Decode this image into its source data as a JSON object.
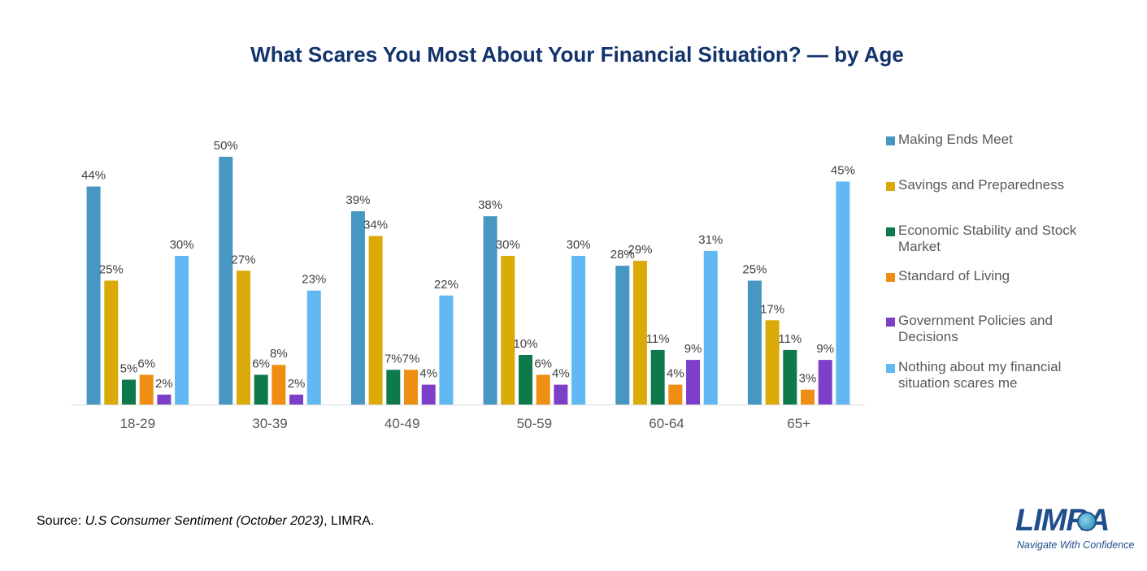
{
  "chart_data": {
    "type": "bar",
    "title": "What Scares You Most About Your Financial Situation? — by Age",
    "categories": [
      "18-29",
      "30-39",
      "40-49",
      "50-59",
      "60-64",
      "65+"
    ],
    "series": [
      {
        "name": "Making Ends Meet",
        "color": "#4797c2",
        "values": [
          44,
          50,
          39,
          38,
          28,
          25
        ],
        "labels": [
          "44%",
          "50%",
          "39%",
          "38%",
          "28%",
          "25%"
        ]
      },
      {
        "name": "Savings and Preparedness",
        "color": "#d9aa08",
        "values": [
          25,
          27,
          34,
          30,
          29,
          17
        ],
        "labels": [
          "25%",
          "27%",
          "34%",
          "30%",
          "29%",
          "17%"
        ]
      },
      {
        "name": "Economic Stability and Stock Market",
        "color": "#0e7a4c",
        "values": [
          5,
          6,
          7,
          10,
          11,
          11
        ],
        "labels": [
          "5%",
          "6%",
          "7%",
          "10%",
          "11%",
          "11%"
        ]
      },
      {
        "name": "Standard of Living",
        "color": "#ee8f13",
        "values": [
          6,
          8,
          7,
          6,
          4,
          3
        ],
        "labels": [
          "6%",
          "8%",
          "7%",
          "6%",
          "4%",
          "3%"
        ]
      },
      {
        "name": "Government Policies and Decisions",
        "color": "#7b3fc8",
        "values": [
          2,
          2,
          4,
          4,
          9,
          9
        ],
        "labels": [
          "2%",
          "2%",
          "4%",
          "4%",
          "9%",
          "9%"
        ]
      },
      {
        "name": "Nothing about my financial situation scares me",
        "color": "#62b8f2",
        "values": [
          30,
          23,
          22,
          30,
          31,
          45
        ],
        "labels": [
          "30%",
          "23%",
          "22%",
          "30%",
          "31%",
          "45%"
        ]
      }
    ],
    "ylim": [
      0,
      50
    ],
    "grid": false,
    "legend": "right"
  },
  "source": {
    "prefix": "Source: ",
    "title": "U.S Consumer Sentiment (October 2023)",
    "suffix": ", LIMRA."
  },
  "logo": {
    "wordmark": "LIMRA",
    "tagline": "Navigate With Confidence"
  }
}
